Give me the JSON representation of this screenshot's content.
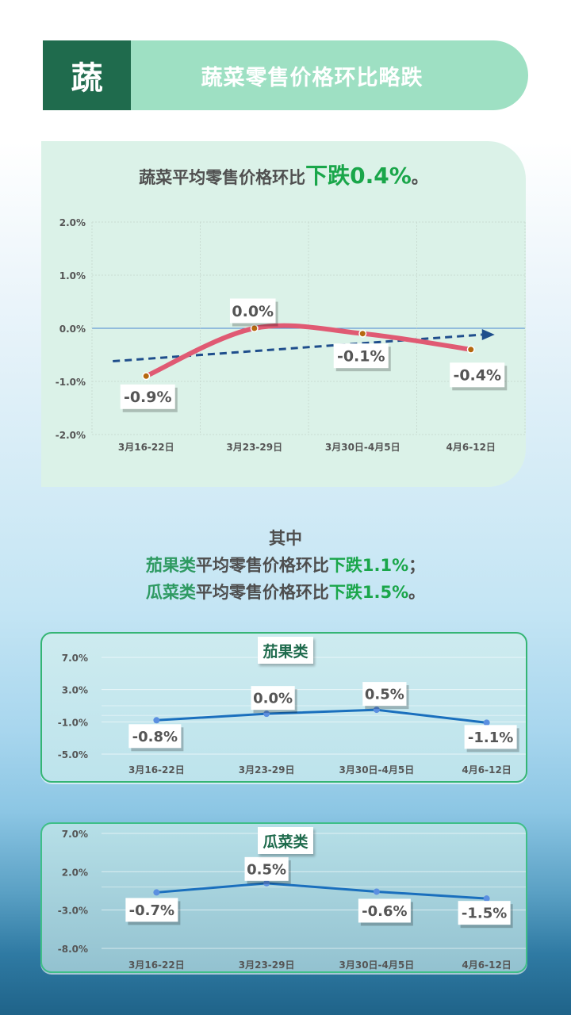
{
  "header": {
    "badge": "蔬",
    "title": "蔬菜零售价格环比略跌"
  },
  "main": {
    "headline_prefix": "蔬菜平均零售价格环比",
    "headline_highlight": "下跌0.4%",
    "headline_suffix": "。"
  },
  "summary": {
    "intro": "其中",
    "line1": {
      "category": "茄果类",
      "text": "平均零售价格环比",
      "highlight": "下跌1.1%",
      "suffix": "；"
    },
    "line2": {
      "category": "瓜菜类",
      "text": "平均零售价格环比",
      "highlight": "下跌1.5%",
      "suffix": "。"
    }
  },
  "sub1": {
    "title": "茄果类"
  },
  "sub2": {
    "title": "瓜菜类"
  },
  "colors": {
    "header_dark": "#1f6b4d",
    "header_light": "#9ee0c3",
    "highlight_green": "#1aa64a",
    "main_line": "#e05a73",
    "trend_line": "#1f4e8c",
    "sub_line": "#1a6fbd"
  },
  "chart_data": [
    {
      "type": "line",
      "title": "蔬菜平均零售价格环比",
      "categories": [
        "3月16-22日",
        "3月23-29日",
        "3月30日-4月5日",
        "4月6-12日"
      ],
      "series": [
        {
          "name": "蔬菜",
          "values": [
            -0.9,
            0.0,
            -0.1,
            -0.4
          ],
          "labels": [
            "-0.9%",
            "0.0%",
            "-0.1%",
            "-0.4%"
          ],
          "smooth": true
        },
        {
          "name": "趋势线",
          "values": [
            -0.57,
            -0.42,
            -0.27,
            -0.12
          ],
          "style": "dashed-arrow"
        }
      ],
      "yticks": [
        "2.0%",
        "1.0%",
        "0.0%",
        "-1.0%",
        "-2.0%"
      ],
      "ylim": [
        -2.0,
        2.0
      ],
      "xlabel": "",
      "ylabel": "",
      "grid": true
    },
    {
      "type": "line",
      "title": "茄果类",
      "categories": [
        "3月16-22日",
        "3月23-29日",
        "3月30日-4月5日",
        "4月6-12日"
      ],
      "series": [
        {
          "name": "茄果类",
          "values": [
            -0.8,
            0.0,
            0.5,
            -1.1
          ],
          "labels": [
            "-0.8%",
            "0.0%",
            "0.5%",
            "-1.1%"
          ]
        }
      ],
      "yticks": [
        "7.0%",
        "3.0%",
        "-1.0%",
        "-5.0%"
      ],
      "ylim": [
        -5.0,
        7.0
      ],
      "grid": true
    },
    {
      "type": "line",
      "title": "瓜菜类",
      "categories": [
        "3月16-22日",
        "3月23-29日",
        "3月30日-4月5日",
        "4月6-12日"
      ],
      "series": [
        {
          "name": "瓜菜类",
          "values": [
            -0.7,
            0.5,
            -0.6,
            -1.5
          ],
          "labels": [
            "-0.7%",
            "0.5%",
            "-0.6%",
            "-1.5%"
          ]
        }
      ],
      "yticks": [
        "7.0%",
        "2.0%",
        "-3.0%",
        "-8.0%"
      ],
      "ylim": [
        -8.0,
        7.0
      ],
      "grid": true
    }
  ]
}
